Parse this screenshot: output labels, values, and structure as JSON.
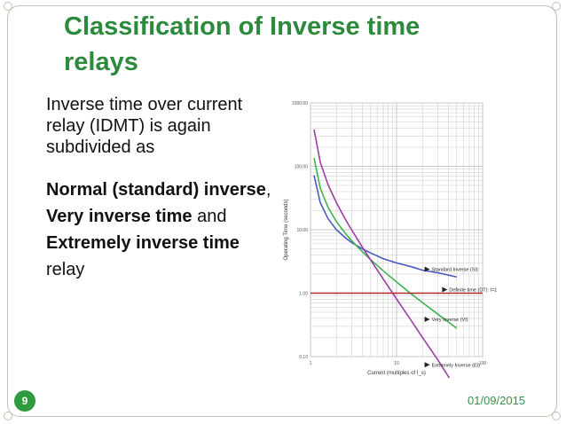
{
  "slide": {
    "title": "Classification of Inverse time relays",
    "intro": "Inverse time over current relay (IDMT)  is again subdivided as",
    "list": {
      "normal": "Normal (standard) inverse",
      "comma": ",",
      "very": "Very inverse time",
      "and": " and",
      "extremely": "Extremely inverse time",
      "relay": "relay"
    },
    "page_number": "9",
    "date": "01/09/2015"
  },
  "chart_data": {
    "type": "line",
    "xlabel": "Current (multiples of I_s)",
    "ylabel": "Operating Time (seconds)",
    "x_scale": "log",
    "y_scale": "log",
    "xlim": [
      1,
      100
    ],
    "ylim": [
      0.1,
      1000
    ],
    "x_ticks": [
      "1",
      "10",
      "100"
    ],
    "y_ticks": [
      "0.10",
      "1.00",
      "10.00",
      "100.00",
      "1000.00"
    ],
    "grid": true,
    "series": [
      {
        "name": "Standard Inverse (SI)",
        "color": "#4a5bbf",
        "x": [
          1.1,
          1.3,
          1.6,
          2,
          2.5,
          3,
          4,
          5,
          7,
          10,
          15,
          20,
          30,
          50
        ],
        "y": [
          72.1,
          26.7,
          14.9,
          10.0,
          7.6,
          6.3,
          5.0,
          4.3,
          3.5,
          3.0,
          2.6,
          2.3,
          2.1,
          1.8
        ]
      },
      {
        "name": "Very Inverse (VI)",
        "color": "#3fb34f",
        "x": [
          1.1,
          1.3,
          1.6,
          2,
          2.5,
          3,
          4,
          5,
          7,
          10,
          15,
          20,
          30,
          50
        ],
        "y": [
          135,
          45,
          22.5,
          13.5,
          9.0,
          6.75,
          4.5,
          3.38,
          2.25,
          1.5,
          0.96,
          0.71,
          0.47,
          0.28
        ]
      },
      {
        "name": "Extremely Inverse (EI)",
        "color": "#9b3fa6",
        "x": [
          1.1,
          1.3,
          1.6,
          2,
          2.5,
          3,
          4,
          5,
          7,
          10,
          15,
          20,
          30,
          50
        ],
        "y": [
          381,
          115,
          51.3,
          26.7,
          15.2,
          10.0,
          5.33,
          3.33,
          1.67,
          0.81,
          0.36,
          0.2,
          0.09,
          0.03
        ]
      },
      {
        "name": "Definite time (DT): t=1",
        "color": "#b02a2a",
        "x": [
          1,
          100
        ],
        "y": [
          1,
          1
        ]
      }
    ]
  }
}
